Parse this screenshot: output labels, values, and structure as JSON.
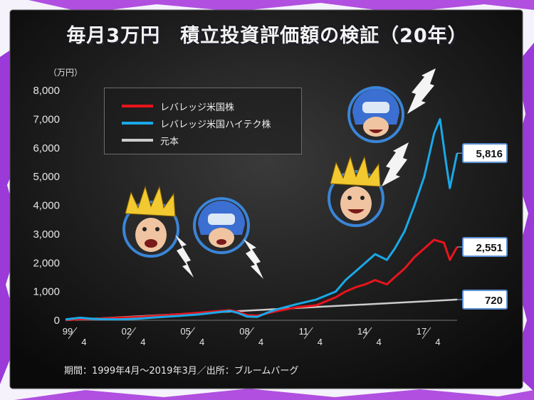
{
  "title": "毎月3万円　積立投資評価額の検証（20年）",
  "source": "期間：1999年4月〜2019年3月／出所：ブルームバーグ",
  "chart_data": {
    "type": "line",
    "y_unit_label": "（万円）",
    "ylim": [
      0,
      8000
    ],
    "yticks": [
      "8,000",
      "7,000",
      "6,000",
      "5,000",
      "4,000",
      "3,000",
      "2,000",
      "1,000",
      "0"
    ],
    "yvalues": [
      8000,
      7000,
      6000,
      5000,
      4000,
      3000,
      2000,
      1000,
      0
    ],
    "xlim": [
      1999.25,
      2019.17
    ],
    "xticks": [
      {
        "year": "99",
        "month": "4",
        "x": 1999.25
      },
      {
        "year": "02",
        "month": "4",
        "x": 2002.25
      },
      {
        "year": "05",
        "month": "4",
        "x": 2005.25
      },
      {
        "year": "08",
        "month": "4",
        "x": 2008.25
      },
      {
        "year": "11",
        "month": "4",
        "x": 2011.25
      },
      {
        "year": "14",
        "month": "4",
        "x": 2014.25
      },
      {
        "year": "17",
        "month": "4",
        "x": 2017.25
      }
    ],
    "legend_position": "top-left",
    "series": [
      {
        "name": "レバレッジ米国株",
        "color": "#e8141c",
        "end_label": "2,551",
        "end_value": 2551,
        "points": [
          [
            1999.25,
            10
          ],
          [
            2000,
            40
          ],
          [
            2001,
            60
          ],
          [
            2002,
            90
          ],
          [
            2003,
            120
          ],
          [
            2004,
            160
          ],
          [
            2005,
            210
          ],
          [
            2006,
            260
          ],
          [
            2007,
            320
          ],
          [
            2007.6,
            350
          ],
          [
            2008,
            300
          ],
          [
            2008.5,
            180
          ],
          [
            2009,
            160
          ],
          [
            2009.5,
            240
          ],
          [
            2010,
            320
          ],
          [
            2011,
            450
          ],
          [
            2012,
            520
          ],
          [
            2013,
            800
          ],
          [
            2013.5,
            1000
          ],
          [
            2014,
            1150
          ],
          [
            2014.5,
            1250
          ],
          [
            2015,
            1400
          ],
          [
            2015.6,
            1250
          ],
          [
            2016,
            1500
          ],
          [
            2016.5,
            1800
          ],
          [
            2017,
            2200
          ],
          [
            2017.5,
            2500
          ],
          [
            2018,
            2800
          ],
          [
            2018.5,
            2700
          ],
          [
            2018.8,
            2100
          ],
          [
            2019.17,
            2551
          ]
        ]
      },
      {
        "name": "レバレッジ米国ハイテク株",
        "color": "#1aa8e8",
        "end_label": "5,816",
        "end_value": 5816,
        "points": [
          [
            1999.25,
            30
          ],
          [
            2000,
            90
          ],
          [
            2000.5,
            60
          ],
          [
            2001,
            40
          ],
          [
            2002,
            30
          ],
          [
            2003,
            60
          ],
          [
            2004,
            110
          ],
          [
            2005,
            150
          ],
          [
            2006,
            200
          ],
          [
            2007,
            280
          ],
          [
            2007.6,
            330
          ],
          [
            2008,
            260
          ],
          [
            2008.5,
            130
          ],
          [
            2009,
            120
          ],
          [
            2009.5,
            260
          ],
          [
            2010,
            380
          ],
          [
            2011,
            560
          ],
          [
            2012,
            720
          ],
          [
            2013,
            1000
          ],
          [
            2013.5,
            1400
          ],
          [
            2014,
            1700
          ],
          [
            2014.5,
            2000
          ],
          [
            2015,
            2300
          ],
          [
            2015.6,
            2100
          ],
          [
            2016,
            2500
          ],
          [
            2016.5,
            3100
          ],
          [
            2017,
            4000
          ],
          [
            2017.5,
            5000
          ],
          [
            2018,
            6500
          ],
          [
            2018.3,
            7000
          ],
          [
            2018.6,
            5500
          ],
          [
            2018.8,
            4600
          ],
          [
            2019.17,
            5816
          ]
        ]
      },
      {
        "name": "元本",
        "color": "#cccccc",
        "end_label": "720",
        "end_value": 720,
        "points": [
          [
            1999.25,
            3
          ],
          [
            2019.17,
            720
          ]
        ]
      }
    ]
  }
}
